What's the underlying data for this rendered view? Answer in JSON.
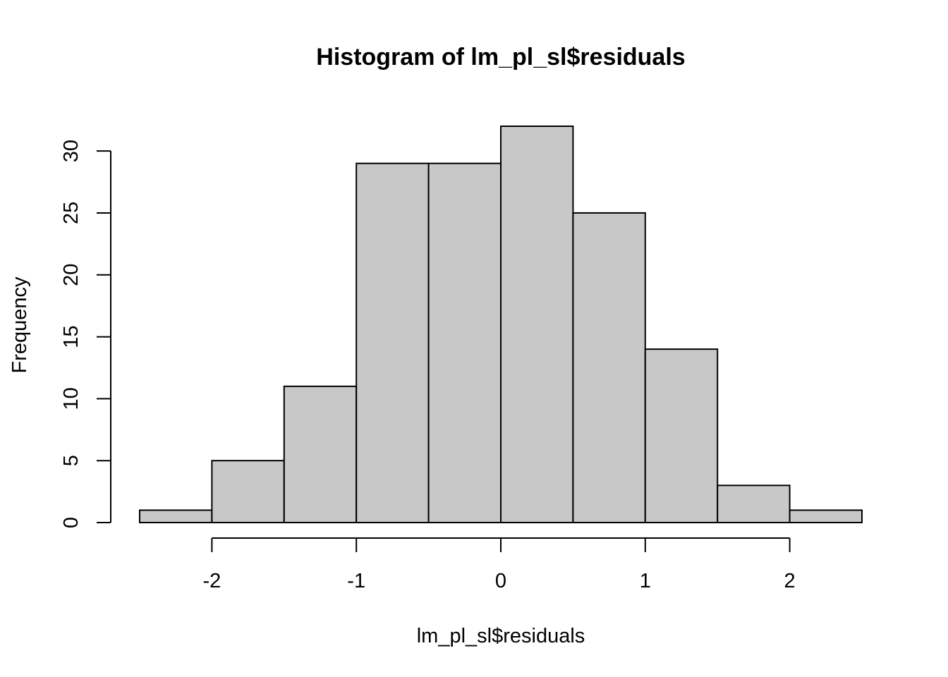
{
  "chart_data": {
    "type": "bar",
    "title": "Histogram of lm_pl_sl$residuals",
    "xlabel": "lm_pl_sl$residuals",
    "ylabel": "Frequency",
    "bins": [
      {
        "from": -2.5,
        "to": -2.0,
        "count": 1
      },
      {
        "from": -2.0,
        "to": -1.5,
        "count": 5
      },
      {
        "from": -1.5,
        "to": -1.0,
        "count": 11
      },
      {
        "from": -1.0,
        "to": -0.5,
        "count": 29
      },
      {
        "from": -0.5,
        "to": 0.0,
        "count": 29
      },
      {
        "from": 0.0,
        "to": 0.5,
        "count": 32
      },
      {
        "from": 0.5,
        "to": 1.0,
        "count": 25
      },
      {
        "from": 1.0,
        "to": 1.5,
        "count": 14
      },
      {
        "from": 1.5,
        "to": 2.0,
        "count": 3
      },
      {
        "from": 2.0,
        "to": 2.5,
        "count": 1
      }
    ],
    "x_ticks": [
      -2,
      -1,
      0,
      1,
      2
    ],
    "x_tick_labels": [
      "-2",
      "-1",
      "0",
      "1",
      "2"
    ],
    "y_ticks": [
      0,
      5,
      10,
      15,
      20,
      25,
      30
    ],
    "y_tick_labels": [
      "0",
      "5",
      "10",
      "15",
      "20",
      "25",
      "30"
    ],
    "xlim": [
      -2.5,
      2.5
    ],
    "ylim": [
      0,
      32
    ],
    "grid": false,
    "colors": {
      "bar_fill": "#c8c8c8",
      "bar_stroke": "#000000"
    }
  }
}
